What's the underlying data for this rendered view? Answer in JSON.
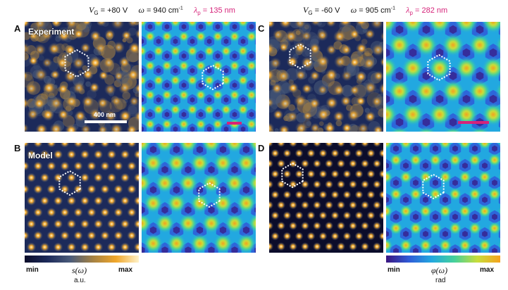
{
  "header": {
    "left": {
      "vg_label": "V",
      "vg_sub": "G",
      "vg_value": " = +80 V",
      "omega_label": "ω",
      "omega_value": " = 940 cm",
      "omega_exp": "-1",
      "lambda_label": "λ",
      "lambda_sub": "p",
      "lambda_value": " = 135 nm"
    },
    "right": {
      "vg_label": "V",
      "vg_sub": "G",
      "vg_value": " = -60 V",
      "omega_label": "ω",
      "omega_value": " = 905 cm",
      "omega_exp": "-1",
      "lambda_label": "λ",
      "lambda_sub": "p",
      "lambda_value": " = 282 nm"
    }
  },
  "panel_labels": {
    "a": "A",
    "b": "B",
    "c": "C",
    "d": "D"
  },
  "overlays": {
    "experiment": "Experiment",
    "model": "Model",
    "scalebar": "400 nm"
  },
  "colorbars": {
    "left": {
      "min": "min",
      "max": "max",
      "quantity": "s(ω)",
      "unit": "a.u."
    },
    "right": {
      "min": "min",
      "max": "max",
      "quantity": "φ(ω)",
      "unit": "rad"
    }
  },
  "colors": {
    "amplitude_map": [
      "#0b0c2a",
      "#1c2a5a",
      "#4a5b7a",
      "#a68243",
      "#f0a62a",
      "#fff2c8"
    ],
    "phase_map": [
      "#3a1580",
      "#2f5bd8",
      "#22a8e0",
      "#46d19a",
      "#c8dd3a",
      "#f5a21e"
    ],
    "lambda_accent": "#d6237a",
    "hexagon_marker": "#ffffff"
  }
}
